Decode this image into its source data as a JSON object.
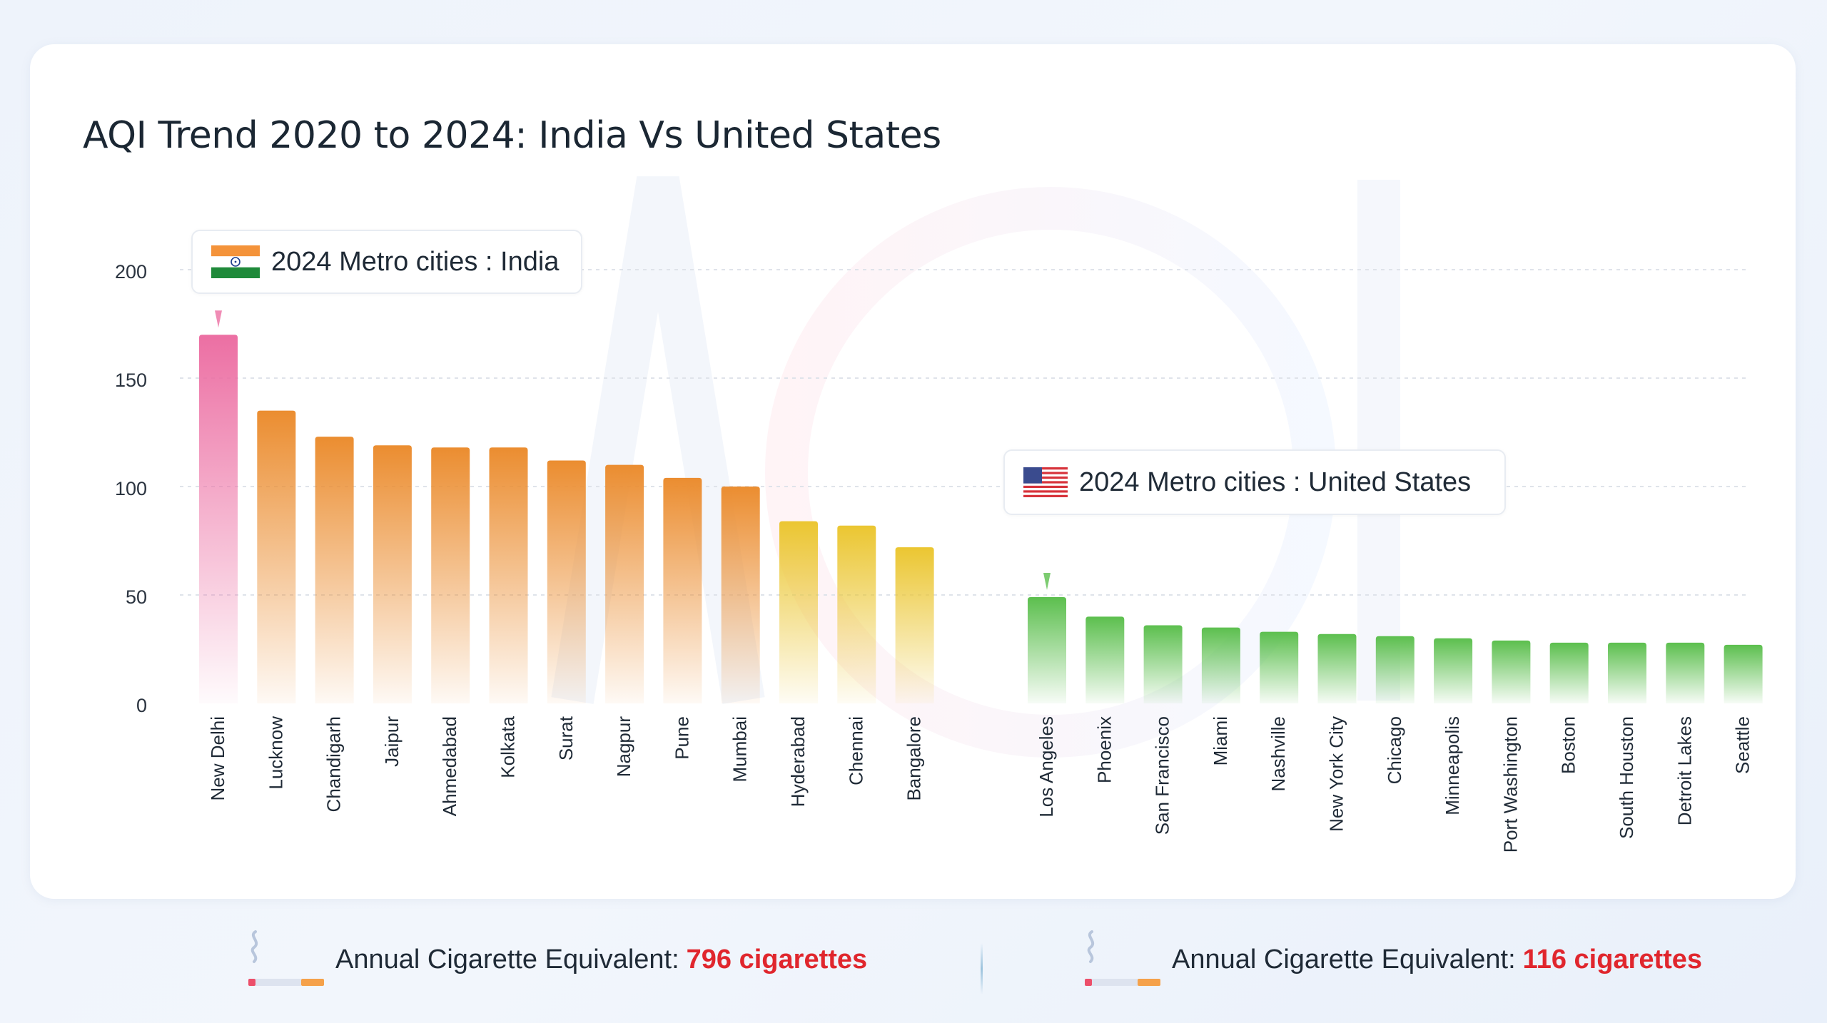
{
  "chart_data": {
    "type": "bar",
    "title": "AQI Trend 2020 to 2024: India Vs United States",
    "ylim": [
      0,
      200
    ],
    "yticks": [
      0,
      50,
      100,
      150,
      200
    ],
    "grid": true,
    "groups": [
      {
        "name": "2024 Metro cities : India",
        "categories": [
          "New Delhi",
          "Lucknow",
          "Chandigarh",
          "Jaipur",
          "Ahmedabad",
          "Kolkata",
          "Surat",
          "Nagpur",
          "Pune",
          "Mumbai",
          "Hyderabad",
          "Chennai",
          "Bangalore"
        ],
        "values": [
          170,
          135,
          123,
          119,
          118,
          118,
          112,
          110,
          104,
          100,
          84,
          82,
          72
        ]
      },
      {
        "name": "2024 Metro cities : United States",
        "categories": [
          "Los Angeles",
          "Phoenix",
          "San Francisco",
          "Miami",
          "Nashville",
          "New York City",
          "Chicago",
          "Minneapolis",
          "Port Washington",
          "Boston",
          "South Houston",
          "Detroit Lakes",
          "Seattle"
        ],
        "values": [
          49,
          40,
          36,
          35,
          33,
          32,
          31,
          30,
          29,
          28,
          28,
          28,
          27
        ]
      }
    ],
    "colors": {
      "pink": "#ec6fa3",
      "orange": "#eb8d30",
      "yellow": "#ebc631",
      "green": "#5cbf4e"
    }
  },
  "legend": {
    "india": "2024 Metro cities : India",
    "us": "2024 Metro cities : United States"
  },
  "footer": {
    "india_label": "Annual Cigarette Equivalent:",
    "india_value": "796 cigarettes",
    "us_label": "Annual Cigarette Equivalent:",
    "us_value": "116 cigarettes"
  },
  "icons": {
    "india_flag": "india-flag-icon",
    "us_flag": "us-flag-icon",
    "cigarette": "cigarette-icon"
  }
}
